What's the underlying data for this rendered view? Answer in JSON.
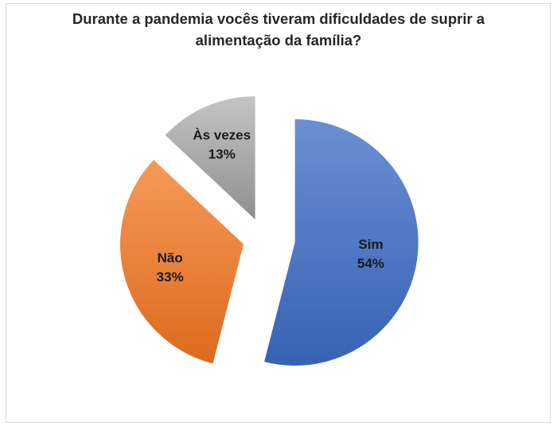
{
  "chart_data": {
    "type": "pie",
    "title_lines": [
      "Durante a pandemia vocês tiveram dificuldades de suprir a",
      "alimentação da família?"
    ],
    "exploded": true,
    "slices": [
      {
        "label": "Sim",
        "value": 54,
        "value_text": "54%",
        "color": "#4472c4"
      },
      {
        "label": "Não",
        "value": 33,
        "value_text": "33%",
        "color": "#ed7d31"
      },
      {
        "label": "Às vezes",
        "value": 13,
        "value_text": "13%",
        "color": "#a5a5a5"
      }
    ]
  }
}
